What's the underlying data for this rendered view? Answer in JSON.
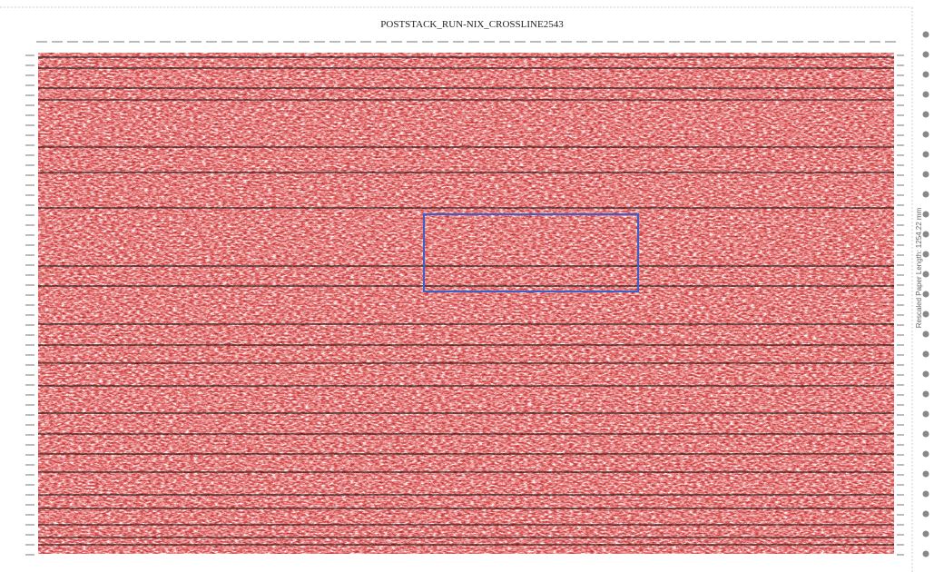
{
  "header": {
    "title": "POSTSTACK_RUN-NIX_CROSSLINE2543"
  },
  "side_note": "Rescaled Paper Length: 1254.22 mm"
}
